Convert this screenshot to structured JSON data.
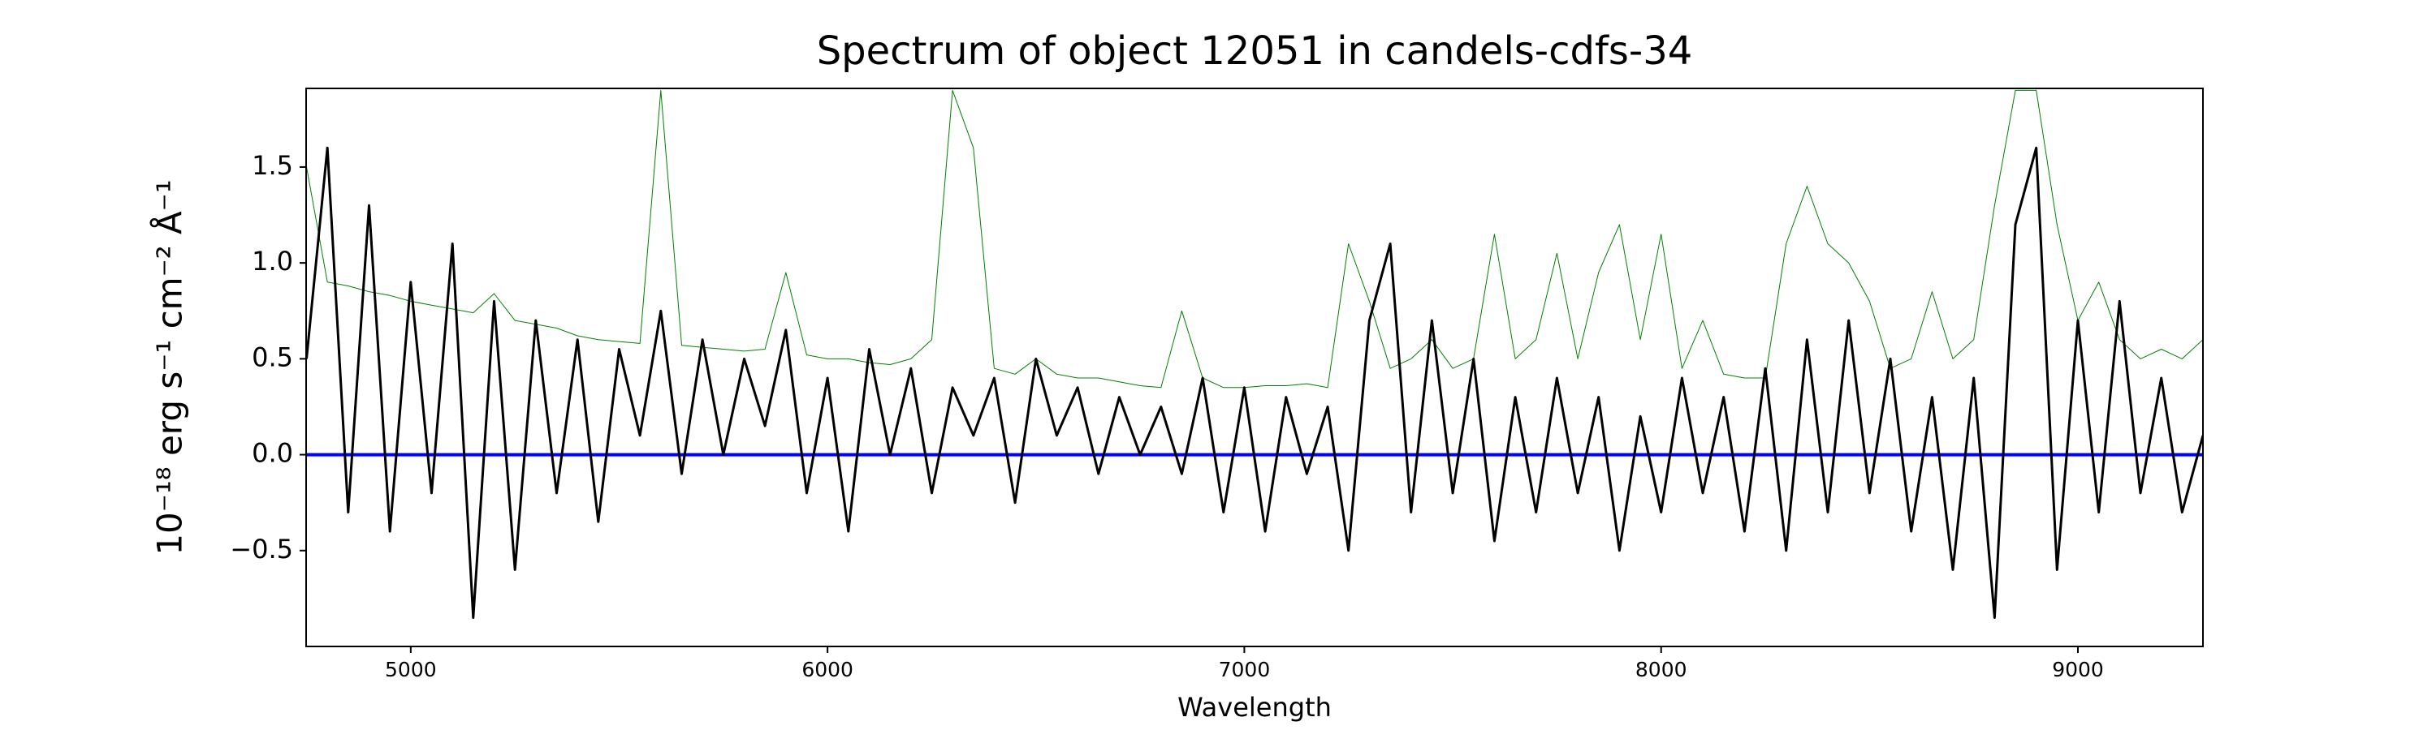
{
  "chart_data": {
    "type": "line",
    "title": "Spectrum of object 12051 in candels-cdfs-34",
    "xlabel": "Wavelength",
    "ylabel": "10⁻¹⁸ erg s⁻¹ cm⁻² Å⁻¹",
    "x": [
      4750,
      4800,
      4850,
      4900,
      4950,
      5000,
      5050,
      5100,
      5150,
      5200,
      5250,
      5300,
      5350,
      5400,
      5450,
      5500,
      5550,
      5600,
      5650,
      5700,
      5750,
      5800,
      5850,
      5900,
      5950,
      6000,
      6050,
      6100,
      6150,
      6200,
      6250,
      6300,
      6350,
      6400,
      6450,
      6500,
      6550,
      6600,
      6650,
      6700,
      6750,
      6800,
      6850,
      6900,
      6950,
      7000,
      7050,
      7100,
      7150,
      7200,
      7250,
      7300,
      7350,
      7400,
      7450,
      7500,
      7550,
      7600,
      7650,
      7700,
      7750,
      7800,
      7850,
      7900,
      7950,
      8000,
      8050,
      8100,
      8150,
      8200,
      8250,
      8300,
      8350,
      8400,
      8450,
      8500,
      8550,
      8600,
      8650,
      8700,
      8750,
      8800,
      8850,
      8900,
      8950,
      9000,
      9050,
      9100,
      9150,
      9200,
      9250,
      9300
    ],
    "series": [
      {
        "color": "#008000",
        "linewidth": 1,
        "values": [
          1.5,
          0.9,
          0.88,
          0.85,
          0.83,
          0.8,
          0.78,
          0.76,
          0.74,
          0.84,
          0.7,
          0.68,
          0.66,
          0.62,
          0.6,
          0.59,
          0.58,
          1.9,
          0.57,
          0.56,
          0.55,
          0.54,
          0.55,
          0.95,
          0.52,
          0.5,
          0.5,
          0.48,
          0.47,
          0.5,
          0.6,
          1.9,
          1.6,
          0.45,
          0.42,
          0.5,
          0.42,
          0.4,
          0.4,
          0.38,
          0.36,
          0.35,
          0.75,
          0.4,
          0.35,
          0.35,
          0.36,
          0.36,
          0.37,
          0.35,
          1.1,
          0.8,
          0.45,
          0.5,
          0.6,
          0.45,
          0.5,
          1.15,
          0.5,
          0.6,
          1.05,
          0.5,
          0.95,
          1.2,
          0.6,
          1.15,
          0.45,
          0.7,
          0.42,
          0.4,
          0.4,
          1.1,
          1.4,
          1.1,
          1.0,
          0.8,
          0.45,
          0.5,
          0.85,
          0.5,
          0.6,
          1.3,
          1.9,
          1.9,
          1.2,
          0.7,
          0.9,
          0.6,
          0.5,
          0.55,
          0.5,
          0.6
        ]
      },
      {
        "color": "#000000",
        "linewidth": 3,
        "values": [
          0.5,
          1.6,
          -0.3,
          1.3,
          -0.4,
          0.9,
          -0.2,
          1.1,
          -0.85,
          0.8,
          -0.6,
          0.7,
          -0.2,
          0.6,
          -0.35,
          0.55,
          0.1,
          0.75,
          -0.1,
          0.6,
          0.0,
          0.5,
          0.15,
          0.65,
          -0.2,
          0.4,
          -0.4,
          0.55,
          0.0,
          0.45,
          -0.2,
          0.35,
          0.1,
          0.4,
          -0.25,
          0.5,
          0.1,
          0.35,
          -0.1,
          0.3,
          0.0,
          0.25,
          -0.1,
          0.4,
          -0.3,
          0.35,
          -0.4,
          0.3,
          -0.1,
          0.25,
          -0.5,
          0.7,
          1.1,
          -0.3,
          0.7,
          -0.2,
          0.5,
          -0.45,
          0.3,
          -0.3,
          0.4,
          -0.2,
          0.3,
          -0.5,
          0.2,
          -0.3,
          0.4,
          -0.2,
          0.3,
          -0.4,
          0.45,
          -0.5,
          0.6,
          -0.3,
          0.7,
          -0.2,
          0.5,
          -0.4,
          0.3,
          -0.6,
          0.4,
          -0.85,
          1.2,
          1.6,
          -0.6,
          0.7,
          -0.3,
          0.8,
          -0.2,
          0.4,
          -0.3,
          0.1
        ]
      }
    ],
    "zero_line": {
      "value": 0,
      "color": "#0000ff"
    },
    "xlim": [
      4749,
      9300
    ],
    "ylim": [
      -1.0,
      1.91
    ],
    "xticks": [
      5000,
      6000,
      7000,
      8000,
      9000
    ],
    "yticks": [
      {
        "value": -0.5,
        "label": "−0.5"
      },
      {
        "value": 0,
        "label": "0.0"
      },
      {
        "value": 0.5,
        "label": "0.5"
      },
      {
        "value": 1.0,
        "label": "1.0"
      },
      {
        "value": 1.5,
        "label": "1.5"
      }
    ],
    "grid": false
  }
}
